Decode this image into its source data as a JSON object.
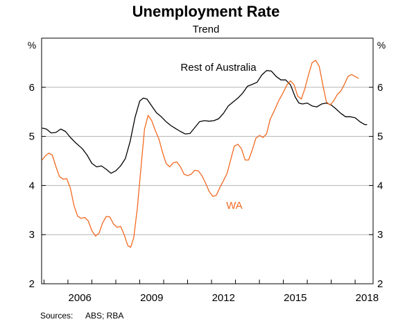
{
  "chart_data": {
    "type": "line",
    "title": "Unemployment Rate",
    "subtitle": "Trend",
    "ylabel_left": "%",
    "ylabel_right": "%",
    "ylim": [
      2,
      7
    ],
    "yticks": [
      2,
      3,
      4,
      5,
      6
    ],
    "xlim": [
      2004.9,
      2018.75
    ],
    "xticks": [
      2006,
      2009,
      2012,
      2015,
      2018
    ],
    "grid": true,
    "series": [
      {
        "name": "Rest of Australia",
        "color": "#000000",
        "label_position": "top-center",
        "points": [
          [
            2004.92,
            5.17
          ],
          [
            2005.1,
            5.15
          ],
          [
            2005.3,
            5.07
          ],
          [
            2005.5,
            5.08
          ],
          [
            2005.7,
            5.15
          ],
          [
            2005.9,
            5.1
          ],
          [
            2006.1,
            4.98
          ],
          [
            2006.3,
            4.88
          ],
          [
            2006.6,
            4.75
          ],
          [
            2006.8,
            4.62
          ],
          [
            2007.0,
            4.45
          ],
          [
            2007.2,
            4.38
          ],
          [
            2007.4,
            4.4
          ],
          [
            2007.6,
            4.33
          ],
          [
            2007.8,
            4.25
          ],
          [
            2008.0,
            4.3
          ],
          [
            2008.2,
            4.4
          ],
          [
            2008.4,
            4.55
          ],
          [
            2008.6,
            4.9
          ],
          [
            2008.8,
            5.38
          ],
          [
            2009.0,
            5.72
          ],
          [
            2009.15,
            5.78
          ],
          [
            2009.3,
            5.76
          ],
          [
            2009.5,
            5.62
          ],
          [
            2009.7,
            5.48
          ],
          [
            2009.9,
            5.4
          ],
          [
            2010.1,
            5.3
          ],
          [
            2010.3,
            5.22
          ],
          [
            2010.5,
            5.16
          ],
          [
            2010.7,
            5.1
          ],
          [
            2010.9,
            5.05
          ],
          [
            2011.1,
            5.06
          ],
          [
            2011.3,
            5.18
          ],
          [
            2011.5,
            5.3
          ],
          [
            2011.7,
            5.32
          ],
          [
            2011.9,
            5.31
          ],
          [
            2012.1,
            5.32
          ],
          [
            2012.3,
            5.36
          ],
          [
            2012.5,
            5.47
          ],
          [
            2012.7,
            5.62
          ],
          [
            2012.9,
            5.7
          ],
          [
            2013.1,
            5.78
          ],
          [
            2013.3,
            5.88
          ],
          [
            2013.5,
            6.02
          ],
          [
            2013.7,
            6.06
          ],
          [
            2013.9,
            6.1
          ],
          [
            2014.1,
            6.25
          ],
          [
            2014.3,
            6.34
          ],
          [
            2014.5,
            6.33
          ],
          [
            2014.7,
            6.22
          ],
          [
            2014.9,
            6.15
          ],
          [
            2015.1,
            6.15
          ],
          [
            2015.3,
            6.05
          ],
          [
            2015.5,
            5.8
          ],
          [
            2015.65,
            5.68
          ],
          [
            2015.8,
            5.66
          ],
          [
            2016.0,
            5.68
          ],
          [
            2016.2,
            5.62
          ],
          [
            2016.4,
            5.6
          ],
          [
            2016.6,
            5.66
          ],
          [
            2016.8,
            5.68
          ],
          [
            2017.0,
            5.64
          ],
          [
            2017.2,
            5.56
          ],
          [
            2017.4,
            5.47
          ],
          [
            2017.6,
            5.4
          ],
          [
            2017.8,
            5.4
          ],
          [
            2018.0,
            5.38
          ],
          [
            2018.2,
            5.3
          ],
          [
            2018.4,
            5.24
          ],
          [
            2018.5,
            5.24
          ]
        ]
      },
      {
        "name": "WA",
        "color": "#f26a21",
        "label_position": "center",
        "points": [
          [
            2004.92,
            4.52
          ],
          [
            2005.05,
            4.6
          ],
          [
            2005.2,
            4.66
          ],
          [
            2005.35,
            4.62
          ],
          [
            2005.5,
            4.38
          ],
          [
            2005.65,
            4.18
          ],
          [
            2005.8,
            4.13
          ],
          [
            2005.95,
            4.14
          ],
          [
            2006.1,
            3.95
          ],
          [
            2006.25,
            3.6
          ],
          [
            2006.4,
            3.38
          ],
          [
            2006.55,
            3.33
          ],
          [
            2006.7,
            3.35
          ],
          [
            2006.85,
            3.28
          ],
          [
            2007.0,
            3.08
          ],
          [
            2007.15,
            2.97
          ],
          [
            2007.3,
            3.03
          ],
          [
            2007.45,
            3.24
          ],
          [
            2007.6,
            3.37
          ],
          [
            2007.75,
            3.36
          ],
          [
            2007.9,
            3.22
          ],
          [
            2008.05,
            3.15
          ],
          [
            2008.2,
            3.17
          ],
          [
            2008.35,
            3.0
          ],
          [
            2008.5,
            2.78
          ],
          [
            2008.62,
            2.74
          ],
          [
            2008.75,
            2.94
          ],
          [
            2008.9,
            3.55
          ],
          [
            2009.05,
            4.35
          ],
          [
            2009.2,
            5.15
          ],
          [
            2009.35,
            5.43
          ],
          [
            2009.5,
            5.32
          ],
          [
            2009.65,
            5.12
          ],
          [
            2009.8,
            4.95
          ],
          [
            2009.95,
            4.68
          ],
          [
            2010.1,
            4.45
          ],
          [
            2010.25,
            4.38
          ],
          [
            2010.4,
            4.46
          ],
          [
            2010.55,
            4.48
          ],
          [
            2010.7,
            4.38
          ],
          [
            2010.85,
            4.23
          ],
          [
            2011.0,
            4.2
          ],
          [
            2011.15,
            4.23
          ],
          [
            2011.3,
            4.31
          ],
          [
            2011.45,
            4.3
          ],
          [
            2011.6,
            4.2
          ],
          [
            2011.75,
            4.05
          ],
          [
            2011.9,
            3.88
          ],
          [
            2012.05,
            3.78
          ],
          [
            2012.2,
            3.8
          ],
          [
            2012.35,
            3.96
          ],
          [
            2012.5,
            4.1
          ],
          [
            2012.65,
            4.25
          ],
          [
            2012.8,
            4.52
          ],
          [
            2012.95,
            4.8
          ],
          [
            2013.1,
            4.84
          ],
          [
            2013.25,
            4.75
          ],
          [
            2013.4,
            4.52
          ],
          [
            2013.55,
            4.52
          ],
          [
            2013.7,
            4.72
          ],
          [
            2013.85,
            4.96
          ],
          [
            2014.0,
            5.02
          ],
          [
            2014.15,
            4.98
          ],
          [
            2014.3,
            5.05
          ],
          [
            2014.45,
            5.35
          ],
          [
            2014.6,
            5.5
          ],
          [
            2014.8,
            5.72
          ],
          [
            2015.0,
            5.9
          ],
          [
            2015.15,
            6.05
          ],
          [
            2015.3,
            6.13
          ],
          [
            2015.45,
            6.05
          ],
          [
            2015.6,
            5.82
          ],
          [
            2015.75,
            5.76
          ],
          [
            2015.9,
            5.97
          ],
          [
            2016.05,
            6.25
          ],
          [
            2016.2,
            6.5
          ],
          [
            2016.35,
            6.55
          ],
          [
            2016.5,
            6.43
          ],
          [
            2016.65,
            6.05
          ],
          [
            2016.8,
            5.7
          ],
          [
            2016.95,
            5.64
          ],
          [
            2017.1,
            5.72
          ],
          [
            2017.25,
            5.85
          ],
          [
            2017.4,
            5.92
          ],
          [
            2017.55,
            6.06
          ],
          [
            2017.7,
            6.22
          ],
          [
            2017.85,
            6.26
          ],
          [
            2018.0,
            6.22
          ],
          [
            2018.15,
            6.18
          ]
        ]
      }
    ],
    "sources_label": "Sources:",
    "sources": "ABS; RBA"
  }
}
